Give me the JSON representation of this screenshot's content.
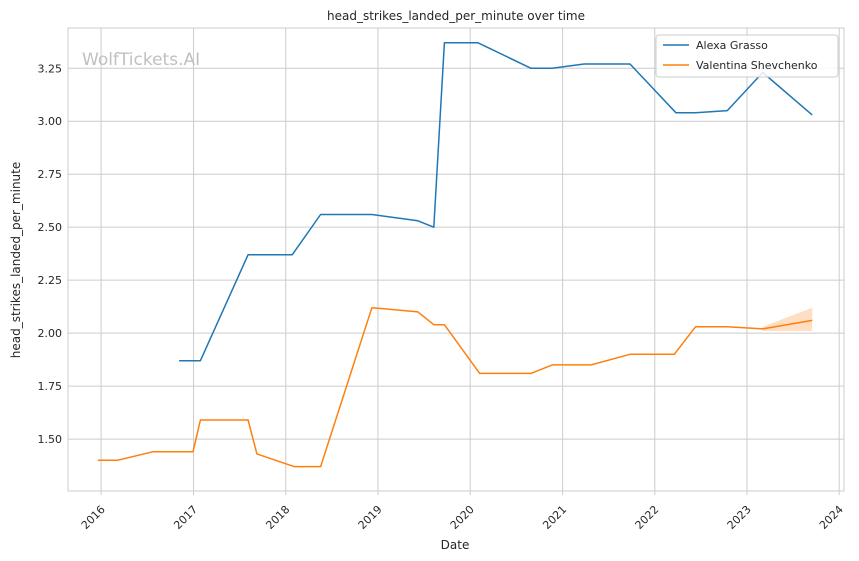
{
  "chart_data": {
    "type": "line",
    "title": "head_strikes_landed_per_minute over time",
    "xlabel": "Date",
    "ylabel": "head_strikes_landed_per_minute",
    "watermark": "WolfTickets.AI",
    "x_ticks": [
      "2016",
      "2017",
      "2018",
      "2019",
      "2020",
      "2021",
      "2022",
      "2023",
      "2024"
    ],
    "y_ticks": [
      "1.50",
      "1.75",
      "2.00",
      "2.25",
      "2.50",
      "2.75",
      "3.00",
      "3.25"
    ],
    "xlim": [
      "2015-08-23",
      "2024-01-20"
    ],
    "ylim": [
      1.255,
      3.44
    ],
    "grid": true,
    "legend_position": "top-right",
    "series": [
      {
        "name": "Alexa Grasso",
        "color": "#1f77b4",
        "points": [
          [
            "2016-11-05",
            1.87
          ],
          [
            "2017-01-28",
            1.87
          ],
          [
            "2017-08-05",
            2.37
          ],
          [
            "2018-01-27",
            2.37
          ],
          [
            "2018-05-19",
            2.56
          ],
          [
            "2018-12-08",
            2.56
          ],
          [
            "2019-06-08",
            2.53
          ],
          [
            "2019-08-10",
            2.5
          ],
          [
            "2019-09-21",
            3.37
          ],
          [
            "2020-02-01",
            3.37
          ],
          [
            "2020-08-29",
            3.25
          ],
          [
            "2020-11-21",
            3.25
          ],
          [
            "2021-03-27",
            3.27
          ],
          [
            "2021-09-25",
            3.27
          ],
          [
            "2022-03-26",
            3.04
          ],
          [
            "2022-06-11",
            3.04
          ],
          [
            "2022-10-15",
            3.05
          ],
          [
            "2023-03-04",
            3.23
          ],
          [
            "2023-09-16",
            3.03
          ]
        ]
      },
      {
        "name": "Valentina Shevchenko",
        "color": "#ff7f0e",
        "points": [
          [
            "2015-12-19",
            1.4
          ],
          [
            "2016-03-05",
            1.4
          ],
          [
            "2016-07-23",
            1.44
          ],
          [
            "2016-12-30",
            1.44
          ],
          [
            "2017-01-28",
            1.59
          ],
          [
            "2017-08-05",
            1.59
          ],
          [
            "2017-09-09",
            1.43
          ],
          [
            "2018-02-03",
            1.37
          ],
          [
            "2018-05-19",
            1.37
          ],
          [
            "2018-12-08",
            2.12
          ],
          [
            "2019-06-08",
            2.1
          ],
          [
            "2019-08-10",
            2.04
          ],
          [
            "2019-09-21",
            2.04
          ],
          [
            "2020-02-08",
            1.81
          ],
          [
            "2020-08-29",
            1.81
          ],
          [
            "2020-11-21",
            1.85
          ],
          [
            "2021-04-24",
            1.85
          ],
          [
            "2021-09-25",
            1.9
          ],
          [
            "2022-03-19",
            1.9
          ],
          [
            "2022-06-11",
            2.03
          ],
          [
            "2022-10-15",
            2.03
          ],
          [
            "2023-03-04",
            2.02
          ],
          [
            "2023-09-16",
            2.06
          ]
        ],
        "band": {
          "x": [
            "2023-03-04",
            "2023-09-16"
          ],
          "lower": [
            2.01,
            2.01
          ],
          "upper": [
            2.03,
            2.12
          ]
        }
      }
    ]
  }
}
